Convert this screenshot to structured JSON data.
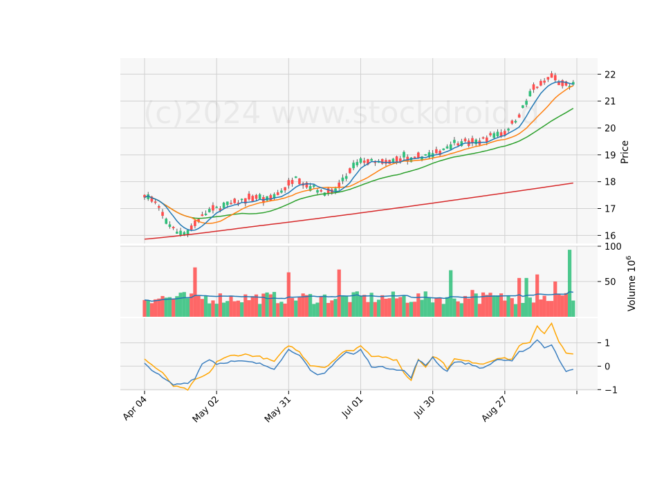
{
  "watermark": "(c)2024 www.stockdroid.d",
  "chart_data": [
    {
      "type": "candlestick",
      "panel": "price",
      "ylabel": "Price",
      "ylim": [
        15.7,
        22.6
      ],
      "yticks": [
        16,
        17,
        18,
        19,
        20,
        21,
        22
      ],
      "xtick_labels": [
        "Apr 04",
        "May 02",
        "May 31",
        "Jul 01",
        "Jul 30",
        "Aug 27",
        ""
      ],
      "xtick_index": [
        0,
        20,
        40,
        60,
        80,
        100,
        120
      ],
      "n": 120,
      "grid": true,
      "close_anchors": [
        [
          0,
          17.55
        ],
        [
          3,
          17.2
        ],
        [
          6,
          16.55
        ],
        [
          9,
          16.1
        ],
        [
          12,
          16.15
        ],
        [
          15,
          16.6
        ],
        [
          18,
          16.9
        ],
        [
          21,
          17.05
        ],
        [
          25,
          17.2
        ],
        [
          28,
          17.35
        ],
        [
          31,
          17.45
        ],
        [
          34,
          17.3
        ],
        [
          37,
          17.55
        ],
        [
          40,
          17.9
        ],
        [
          42,
          18.25
        ],
        [
          44,
          17.95
        ],
        [
          48,
          17.7
        ],
        [
          52,
          17.55
        ],
        [
          55,
          18.0
        ],
        [
          58,
          18.55
        ],
        [
          61,
          18.8
        ],
        [
          64,
          18.7
        ],
        [
          68,
          18.7
        ],
        [
          72,
          18.95
        ],
        [
          74,
          18.75
        ],
        [
          76,
          18.9
        ],
        [
          78,
          19.0
        ],
        [
          80,
          18.95
        ],
        [
          82,
          19.15
        ],
        [
          86,
          19.45
        ],
        [
          88,
          19.5
        ],
        [
          92,
          19.45
        ],
        [
          96,
          19.7
        ],
        [
          100,
          19.85
        ],
        [
          103,
          20.3
        ],
        [
          106,
          20.95
        ],
        [
          108,
          21.5
        ],
        [
          110,
          21.6
        ],
        [
          113,
          21.95
        ],
        [
          116,
          21.6
        ],
        [
          118,
          21.55
        ],
        [
          119,
          21.6
        ]
      ],
      "volume_unit": "10^6"
    },
    {
      "type": "bar",
      "panel": "volume",
      "ylabel": "Volume  10",
      "ylabel_exponent": "6",
      "ylim": [
        0,
        100
      ],
      "yticks": [
        50,
        100
      ],
      "avg_line": "ma20 of volume",
      "spikes": [
        [
          14,
          70
        ],
        [
          40,
          63
        ],
        [
          54,
          67
        ],
        [
          85,
          66
        ],
        [
          91,
          38
        ],
        [
          104,
          55
        ],
        [
          106,
          55
        ],
        [
          109,
          60
        ],
        [
          114,
          50
        ],
        [
          118,
          95
        ]
      ]
    },
    {
      "type": "line",
      "panel": "oscillator",
      "ylim": [
        -1.05,
        2.05
      ],
      "yticks": [
        -1,
        0,
        1
      ],
      "series": [
        {
          "color": "#ffa500",
          "values_anchor": [
            [
              0,
              0.3
            ],
            [
              5,
              -0.3
            ],
            [
              8,
              -0.85
            ],
            [
              12,
              -1.0
            ],
            [
              14,
              -0.6
            ],
            [
              18,
              -0.3
            ],
            [
              20,
              0.2
            ],
            [
              24,
              0.45
            ],
            [
              28,
              0.5
            ],
            [
              32,
              0.4
            ],
            [
              36,
              0.2
            ],
            [
              40,
              0.9
            ],
            [
              43,
              0.6
            ],
            [
              46,
              0.05
            ],
            [
              50,
              -0.05
            ],
            [
              53,
              0.3
            ],
            [
              56,
              0.7
            ],
            [
              58,
              0.65
            ],
            [
              60,
              0.9
            ],
            [
              63,
              0.45
            ],
            [
              66,
              0.4
            ],
            [
              69,
              0.25
            ],
            [
              70,
              0.3
            ],
            [
              72,
              -0.3
            ],
            [
              74,
              -0.6
            ],
            [
              76,
              0.3
            ],
            [
              78,
              0.0
            ],
            [
              80,
              0.4
            ],
            [
              82,
              0.3
            ],
            [
              84,
              -0.1
            ],
            [
              86,
              0.3
            ],
            [
              90,
              0.2
            ],
            [
              94,
              0.1
            ],
            [
              98,
              0.35
            ],
            [
              102,
              0.3
            ],
            [
              104,
              0.9
            ],
            [
              107,
              1.0
            ],
            [
              109,
              1.7
            ],
            [
              111,
              1.4
            ],
            [
              113,
              1.85
            ],
            [
              115,
              1.05
            ],
            [
              117,
              0.55
            ],
            [
              119,
              0.5
            ]
          ]
        },
        {
          "color": "#3a7ebf",
          "values_anchor": [
            [
              0,
              0.1
            ],
            [
              5,
              -0.5
            ],
            [
              8,
              -0.8
            ],
            [
              12,
              -0.7
            ],
            [
              14,
              -0.5
            ],
            [
              16,
              0.1
            ],
            [
              18,
              0.3
            ],
            [
              20,
              0.1
            ],
            [
              24,
              0.2
            ],
            [
              28,
              0.2
            ],
            [
              32,
              0.1
            ],
            [
              36,
              -0.1
            ],
            [
              40,
              0.7
            ],
            [
              43,
              0.5
            ],
            [
              46,
              -0.2
            ],
            [
              48,
              -0.4
            ],
            [
              50,
              -0.3
            ],
            [
              53,
              0.2
            ],
            [
              56,
              0.6
            ],
            [
              58,
              0.5
            ],
            [
              60,
              0.7
            ],
            [
              63,
              0.0
            ],
            [
              66,
              -0.05
            ],
            [
              69,
              -0.1
            ],
            [
              72,
              -0.2
            ],
            [
              74,
              -0.5
            ],
            [
              76,
              0.3
            ],
            [
              78,
              0.0
            ],
            [
              80,
              0.4
            ],
            [
              82,
              0.0
            ],
            [
              84,
              -0.2
            ],
            [
              86,
              0.2
            ],
            [
              90,
              0.1
            ],
            [
              94,
              -0.1
            ],
            [
              98,
              0.3
            ],
            [
              102,
              0.2
            ],
            [
              104,
              0.6
            ],
            [
              107,
              0.8
            ],
            [
              109,
              1.15
            ],
            [
              111,
              0.8
            ],
            [
              113,
              0.9
            ],
            [
              115,
              0.3
            ],
            [
              117,
              -0.2
            ],
            [
              119,
              -0.1
            ]
          ]
        }
      ]
    }
  ],
  "colors": {
    "up": "#2ebf7a",
    "down": "#ff4d4d",
    "ma_fast": "#1f77b4",
    "ma_mid": "#ff7f0e",
    "ma_slow": "#2ca02c",
    "ma_long": "#d62728",
    "vol_avg": "#1f77b4",
    "panel_bg": "#f7f7f7",
    "grid": "#d0d0d0"
  }
}
